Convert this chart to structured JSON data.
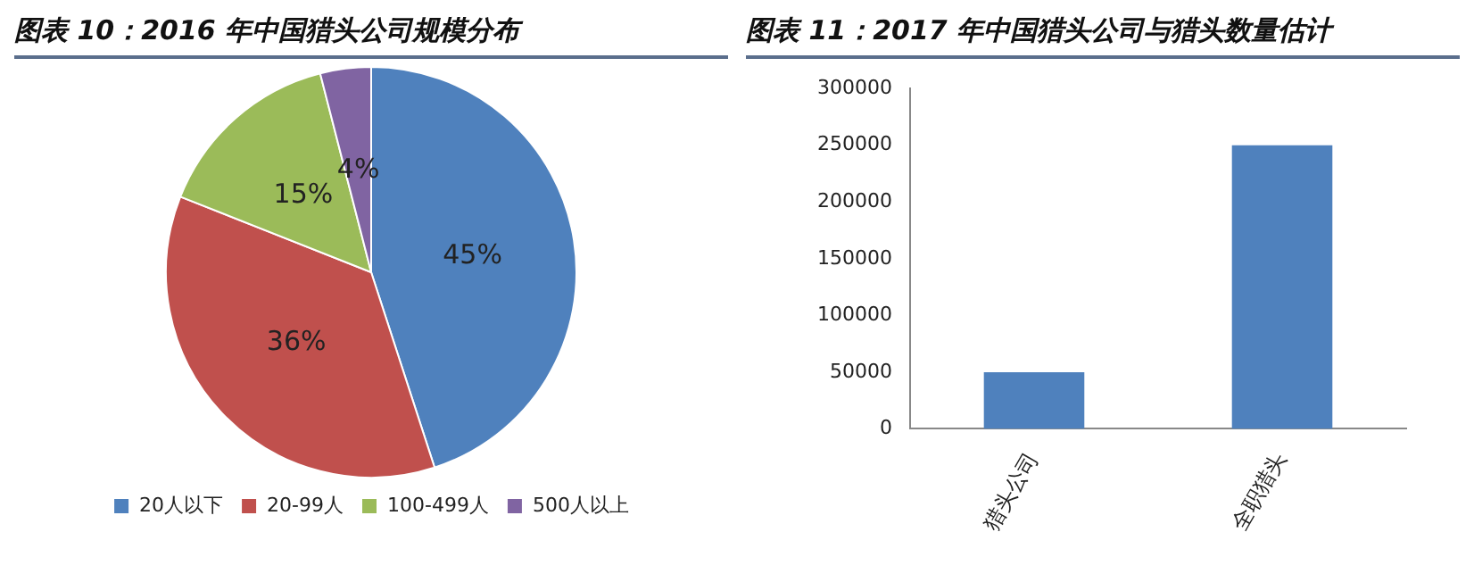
{
  "chart_data": [
    {
      "type": "pie",
      "title": "图表 10：2016 年中国猎头公司规模分布",
      "categories": [
        "20人以下",
        "20-99人",
        "100-499人",
        "500人以上"
      ],
      "values": [
        45,
        36,
        15,
        4
      ],
      "colors": [
        "#4f81bd",
        "#c0504d",
        "#9bbb59",
        "#8064a2"
      ],
      "value_labels": [
        "45%",
        "36%",
        "15%",
        "4%"
      ],
      "legend": "bottom"
    },
    {
      "type": "bar",
      "title": "图表 11：2017 年中国猎头公司与猎头数量估计",
      "categories": [
        "猎头公司",
        "全职猎头"
      ],
      "values": [
        50000,
        250000
      ],
      "color": "#4f81bd",
      "ylim": [
        0,
        300000
      ],
      "yticks": [
        0,
        50000,
        100000,
        150000,
        200000,
        250000,
        300000
      ],
      "grid": false
    }
  ]
}
